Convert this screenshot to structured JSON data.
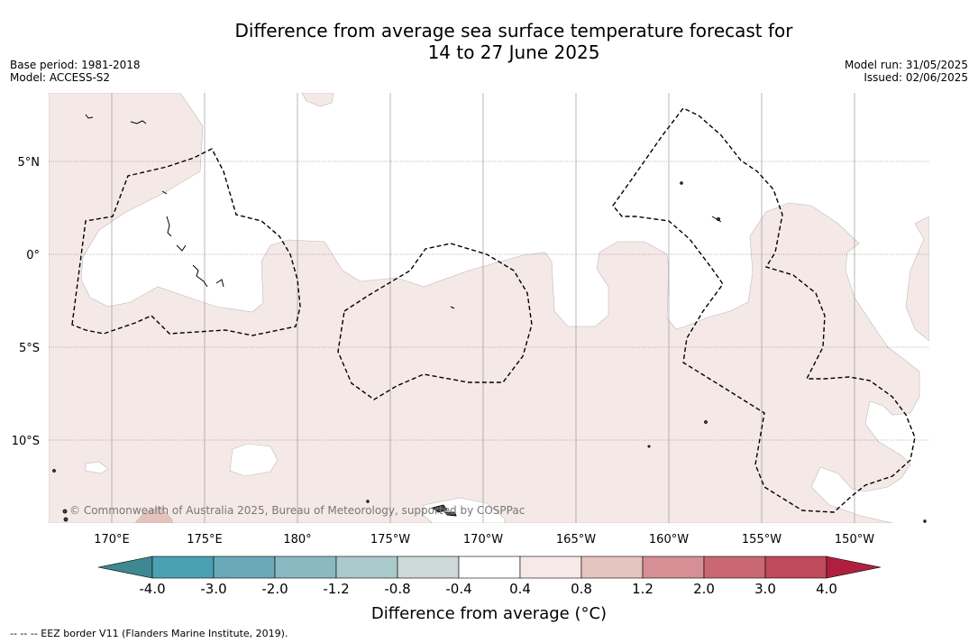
{
  "title_line1": "Difference from average sea surface temperature forecast for",
  "title_line2": "14 to 27 June 2025",
  "meta_left": [
    "Base period: 1981-2018",
    "Model: ACCESS-S2"
  ],
  "meta_right": [
    "Model run: 31/05/2025",
    "Issued: 02/06/2025"
  ],
  "copyright": "© Commonwealth of Australia 2025, Bureau of Meteorology, supported by COSPPac",
  "map": {
    "lon_labels": [
      "170°E",
      "175°E",
      "180°",
      "175°W",
      "170°W",
      "165°W",
      "160°W",
      "155°W",
      "150°W"
    ],
    "lat_labels": [
      "5°N",
      "0°",
      "5°S",
      "10°S"
    ],
    "background_color": "#ffffff",
    "anomaly_fill_color": "#f5e9e7",
    "warm_patch_color": "#e5c3bd",
    "eez_line_color": "#000000",
    "land_color": "#444444"
  },
  "colorbar": {
    "title": "Difference from average (°C)",
    "tick_labels": [
      "-4.0",
      "-3.0",
      "-2.0",
      "-1.2",
      "-0.8",
      "-0.4",
      "0.4",
      "0.8",
      "1.2",
      "2.0",
      "3.0",
      "4.0"
    ],
    "under_color": "#3d8891",
    "over_color": "#b01f3e",
    "bin_colors": [
      "#4aa1b2",
      "#6aaab8",
      "#8bb9c2",
      "#aac9cb",
      "#cdd8d8",
      "#ffffff",
      "#f7e9e7",
      "#e6c4bf",
      "#d58f95",
      "#c96872",
      "#bf4a5b"
    ]
  },
  "footer": "--  --  -- EEZ border V11 (Flanders Marine Institute, 2019)."
}
